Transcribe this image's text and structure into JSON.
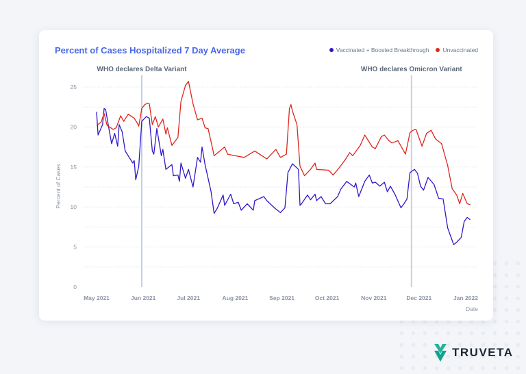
{
  "chart_data": {
    "type": "line",
    "title": "Percent of Cases Hospitalized 7 Day Average",
    "xlabel": "Date",
    "ylabel": "Percent of Cases",
    "ylim": [
      0,
      25
    ],
    "yticks": [
      "0",
      "5",
      "10",
      "15",
      "20",
      "25"
    ],
    "xticks": [
      {
        "date": "2021-05-01",
        "label": "May 2021"
      },
      {
        "date": "2021-06-01",
        "label": "Jun 2021"
      },
      {
        "date": "2021-07-01",
        "label": "Jul 2021"
      },
      {
        "date": "2021-08-01",
        "label": "Aug 2021"
      },
      {
        "date": "2021-09-01",
        "label": "Sep 2021"
      },
      {
        "date": "2021-10-01",
        "label": "Oct 2021"
      },
      {
        "date": "2021-11-01",
        "label": "Nov 2021"
      },
      {
        "date": "2021-12-01",
        "label": "Dec 2021"
      },
      {
        "date": "2022-01-01",
        "label": "Jan 2022"
      }
    ],
    "grid": "horizontal dashed",
    "legend_position": "top-right",
    "annotations": [
      {
        "date": "2021-05-31",
        "label": "WHO declares Delta Variant"
      },
      {
        "date": "2021-11-26",
        "label": "WHO declares Omicron Variant"
      }
    ],
    "series": [
      {
        "name": "Vaccinated + Boosted Breakthrough",
        "color": "#2f17c9",
        "points": [
          [
            "2021-05-01",
            21.9
          ],
          [
            "2021-05-02",
            19.0
          ],
          [
            "2021-05-05",
            20.3
          ],
          [
            "2021-05-06",
            22.3
          ],
          [
            "2021-05-07",
            22.2
          ],
          [
            "2021-05-09",
            20.0
          ],
          [
            "2021-05-11",
            17.9
          ],
          [
            "2021-05-13",
            19.2
          ],
          [
            "2021-05-15",
            17.6
          ],
          [
            "2021-05-16",
            20.3
          ],
          [
            "2021-05-18",
            19.4
          ],
          [
            "2021-05-20",
            17.0
          ],
          [
            "2021-05-25",
            15.5
          ],
          [
            "2021-05-26",
            15.8
          ],
          [
            "2021-05-27",
            13.4
          ],
          [
            "2021-05-29",
            15.1
          ],
          [
            "2021-05-31",
            20.7
          ],
          [
            "2021-06-03",
            21.3
          ],
          [
            "2021-06-05",
            21.1
          ],
          [
            "2021-06-07",
            17.0
          ],
          [
            "2021-06-08",
            16.6
          ],
          [
            "2021-06-10",
            19.8
          ],
          [
            "2021-06-13",
            16.4
          ],
          [
            "2021-06-14",
            17.2
          ],
          [
            "2021-06-16",
            14.7
          ],
          [
            "2021-06-20",
            15.3
          ],
          [
            "2021-06-21",
            13.9
          ],
          [
            "2021-06-24",
            14.0
          ],
          [
            "2021-06-25",
            13.2
          ],
          [
            "2021-06-26",
            15.5
          ],
          [
            "2021-06-29",
            13.6
          ],
          [
            "2021-07-01",
            14.7
          ],
          [
            "2021-07-04",
            12.5
          ],
          [
            "2021-07-07",
            16.2
          ],
          [
            "2021-07-09",
            15.6
          ],
          [
            "2021-07-10",
            17.5
          ],
          [
            "2021-07-12",
            15.3
          ],
          [
            "2021-07-16",
            11.9
          ],
          [
            "2021-07-18",
            9.2
          ],
          [
            "2021-07-20",
            9.8
          ],
          [
            "2021-07-24",
            11.5
          ],
          [
            "2021-07-25",
            10.2
          ],
          [
            "2021-07-29",
            11.6
          ],
          [
            "2021-07-31",
            10.4
          ],
          [
            "2021-08-03",
            10.6
          ],
          [
            "2021-08-05",
            9.6
          ],
          [
            "2021-08-09",
            10.4
          ],
          [
            "2021-08-13",
            9.6
          ],
          [
            "2021-08-14",
            10.8
          ],
          [
            "2021-08-20",
            11.3
          ],
          [
            "2021-08-22",
            10.8
          ],
          [
            "2021-08-27",
            9.9
          ],
          [
            "2021-08-31",
            9.3
          ],
          [
            "2021-09-03",
            9.9
          ],
          [
            "2021-09-05",
            14.3
          ],
          [
            "2021-09-08",
            15.4
          ],
          [
            "2021-09-12",
            14.7
          ],
          [
            "2021-09-13",
            10.2
          ],
          [
            "2021-09-14",
            10.4
          ],
          [
            "2021-09-18",
            11.5
          ],
          [
            "2021-09-20",
            10.9
          ],
          [
            "2021-09-23",
            11.6
          ],
          [
            "2021-09-24",
            10.8
          ],
          [
            "2021-09-27",
            11.3
          ],
          [
            "2021-09-30",
            10.4
          ],
          [
            "2021-10-03",
            10.4
          ],
          [
            "2021-10-08",
            11.3
          ],
          [
            "2021-10-10",
            12.2
          ],
          [
            "2021-10-14",
            13.2
          ],
          [
            "2021-10-19",
            12.5
          ],
          [
            "2021-10-20",
            13.0
          ],
          [
            "2021-10-22",
            11.3
          ],
          [
            "2021-10-26",
            13.2
          ],
          [
            "2021-10-29",
            14.0
          ],
          [
            "2021-10-31",
            13.0
          ],
          [
            "2021-11-02",
            13.1
          ],
          [
            "2021-11-05",
            12.6
          ],
          [
            "2021-11-08",
            13.1
          ],
          [
            "2021-11-10",
            11.9
          ],
          [
            "2021-11-12",
            12.6
          ],
          [
            "2021-11-15",
            11.6
          ],
          [
            "2021-11-19",
            9.9
          ],
          [
            "2021-11-21",
            10.4
          ],
          [
            "2021-11-23",
            11.0
          ],
          [
            "2021-11-25",
            14.3
          ],
          [
            "2021-11-28",
            14.7
          ],
          [
            "2021-11-30",
            14.2
          ],
          [
            "2021-12-02",
            12.6
          ],
          [
            "2021-12-04",
            12.1
          ],
          [
            "2021-12-07",
            13.7
          ],
          [
            "2021-12-11",
            12.8
          ],
          [
            "2021-12-14",
            11.1
          ],
          [
            "2021-12-17",
            11.0
          ],
          [
            "2021-12-20",
            7.4
          ],
          [
            "2021-12-24",
            5.3
          ],
          [
            "2021-12-26",
            5.6
          ],
          [
            "2021-12-29",
            6.2
          ],
          [
            "2021-12-31",
            8.2
          ],
          [
            "2022-01-02",
            8.7
          ],
          [
            "2022-01-04",
            8.4
          ]
        ]
      },
      {
        "name": "Unvaccinated",
        "color": "#e0251b",
        "points": [
          [
            "2021-05-01",
            20.2
          ],
          [
            "2021-05-04",
            20.6
          ],
          [
            "2021-05-06",
            21.7
          ],
          [
            "2021-05-08",
            20.2
          ],
          [
            "2021-05-12",
            19.7
          ],
          [
            "2021-05-14",
            19.9
          ],
          [
            "2021-05-17",
            21.4
          ],
          [
            "2021-05-19",
            20.7
          ],
          [
            "2021-05-22",
            21.6
          ],
          [
            "2021-05-26",
            21.1
          ],
          [
            "2021-05-28",
            20.5
          ],
          [
            "2021-05-29",
            20.1
          ],
          [
            "2021-05-31",
            22.3
          ],
          [
            "2021-06-02",
            22.8
          ],
          [
            "2021-06-04",
            23.0
          ],
          [
            "2021-06-05",
            22.9
          ],
          [
            "2021-06-07",
            20.3
          ],
          [
            "2021-06-09",
            21.3
          ],
          [
            "2021-06-11",
            20.0
          ],
          [
            "2021-06-14",
            21.0
          ],
          [
            "2021-06-16",
            19.1
          ],
          [
            "2021-06-17",
            19.9
          ],
          [
            "2021-06-20",
            17.7
          ],
          [
            "2021-06-24",
            18.7
          ],
          [
            "2021-06-26",
            23.2
          ],
          [
            "2021-06-29",
            25.2
          ],
          [
            "2021-07-01",
            25.7
          ],
          [
            "2021-07-04",
            22.9
          ],
          [
            "2021-07-07",
            20.9
          ],
          [
            "2021-07-10",
            21.1
          ],
          [
            "2021-07-12",
            19.9
          ],
          [
            "2021-07-14",
            19.8
          ],
          [
            "2021-07-17",
            17.3
          ],
          [
            "2021-07-18",
            16.4
          ],
          [
            "2021-07-25",
            17.5
          ],
          [
            "2021-07-27",
            16.6
          ],
          [
            "2021-08-01",
            16.4
          ],
          [
            "2021-08-07",
            16.2
          ],
          [
            "2021-08-14",
            17.0
          ],
          [
            "2021-08-22",
            16.0
          ],
          [
            "2021-08-28",
            17.2
          ],
          [
            "2021-08-31",
            16.2
          ],
          [
            "2021-09-04",
            16.6
          ],
          [
            "2021-09-06",
            22.3
          ],
          [
            "2021-09-07",
            22.8
          ],
          [
            "2021-09-08",
            22.0
          ],
          [
            "2021-09-11",
            20.3
          ],
          [
            "2021-09-13",
            15.1
          ],
          [
            "2021-09-16",
            13.9
          ],
          [
            "2021-09-20",
            14.7
          ],
          [
            "2021-09-23",
            15.5
          ],
          [
            "2021-09-24",
            14.7
          ],
          [
            "2021-10-02",
            14.6
          ],
          [
            "2021-10-05",
            14.0
          ],
          [
            "2021-10-09",
            14.9
          ],
          [
            "2021-10-13",
            15.9
          ],
          [
            "2021-10-16",
            16.8
          ],
          [
            "2021-10-18",
            16.4
          ],
          [
            "2021-10-23",
            17.7
          ],
          [
            "2021-10-26",
            19.0
          ],
          [
            "2021-10-31",
            17.5
          ],
          [
            "2021-11-02",
            17.3
          ],
          [
            "2021-11-06",
            18.8
          ],
          [
            "2021-11-08",
            19.0
          ],
          [
            "2021-11-11",
            18.3
          ],
          [
            "2021-11-13",
            18.0
          ],
          [
            "2021-11-17",
            18.3
          ],
          [
            "2021-11-22",
            16.6
          ],
          [
            "2021-11-25",
            19.3
          ],
          [
            "2021-11-27",
            19.6
          ],
          [
            "2021-11-29",
            19.7
          ],
          [
            "2021-12-03",
            17.6
          ],
          [
            "2021-12-06",
            19.2
          ],
          [
            "2021-12-09",
            19.6
          ],
          [
            "2021-12-12",
            18.5
          ],
          [
            "2021-12-16",
            17.9
          ],
          [
            "2021-12-20",
            15.2
          ],
          [
            "2021-12-23",
            12.3
          ],
          [
            "2021-12-26",
            11.5
          ],
          [
            "2021-12-28",
            10.4
          ],
          [
            "2021-12-30",
            11.7
          ],
          [
            "2022-01-02",
            10.4
          ],
          [
            "2022-01-04",
            10.3
          ]
        ]
      }
    ]
  },
  "brand": {
    "name": "TRUVETA",
    "color": "#1fb59a"
  }
}
